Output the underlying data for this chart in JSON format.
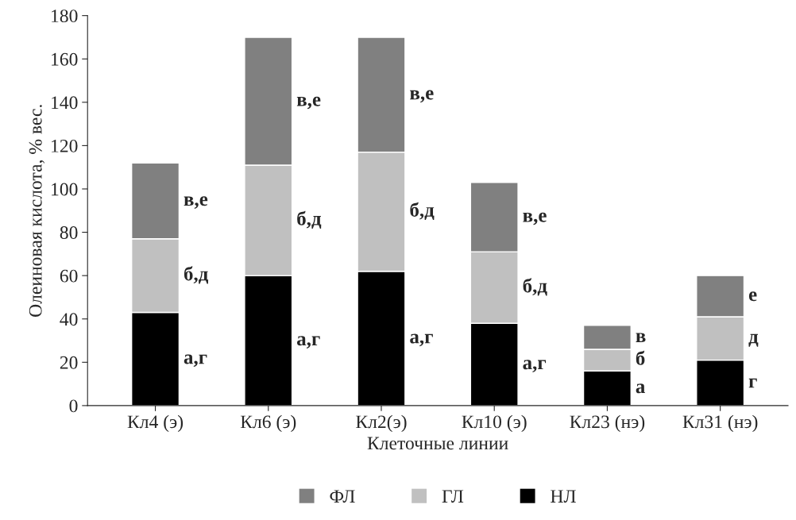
{
  "chart_data": {
    "type": "bar",
    "stacked": true,
    "xlabel": "Клеточные линии",
    "ylabel": "Олеиновая кислота, % вес.",
    "categories": [
      "Кл4 (э)",
      "Кл6 (э)",
      "Кл2(э)",
      "Кл10 (э)",
      "Кл23 (нэ)",
      "Кл31 (нэ)"
    ],
    "series": [
      {
        "name": "НЛ",
        "color": "#000000",
        "values": [
          43,
          60,
          62,
          38,
          16,
          21
        ],
        "value_labels": [
          "а,г",
          "а,г",
          "а,г",
          "а,г",
          "а",
          "г"
        ]
      },
      {
        "name": "ГЛ",
        "color": "#c0c0c0",
        "values": [
          34,
          51,
          55,
          33,
          10,
          20
        ],
        "value_labels": [
          "б,д",
          "б,д",
          "б,д",
          "б,д",
          "б",
          "д"
        ]
      },
      {
        "name": "ФЛ",
        "color": "#808080",
        "values": [
          35,
          59,
          53,
          32,
          11,
          19
        ],
        "value_labels": [
          "в,е",
          "в,е",
          "в,е",
          "в,е",
          "в",
          "е"
        ]
      }
    ],
    "ylim": [
      0,
      180
    ],
    "yticks": [
      0,
      20,
      40,
      60,
      80,
      100,
      120,
      140,
      160,
      180
    ],
    "grid": false,
    "legend": "bottom"
  }
}
